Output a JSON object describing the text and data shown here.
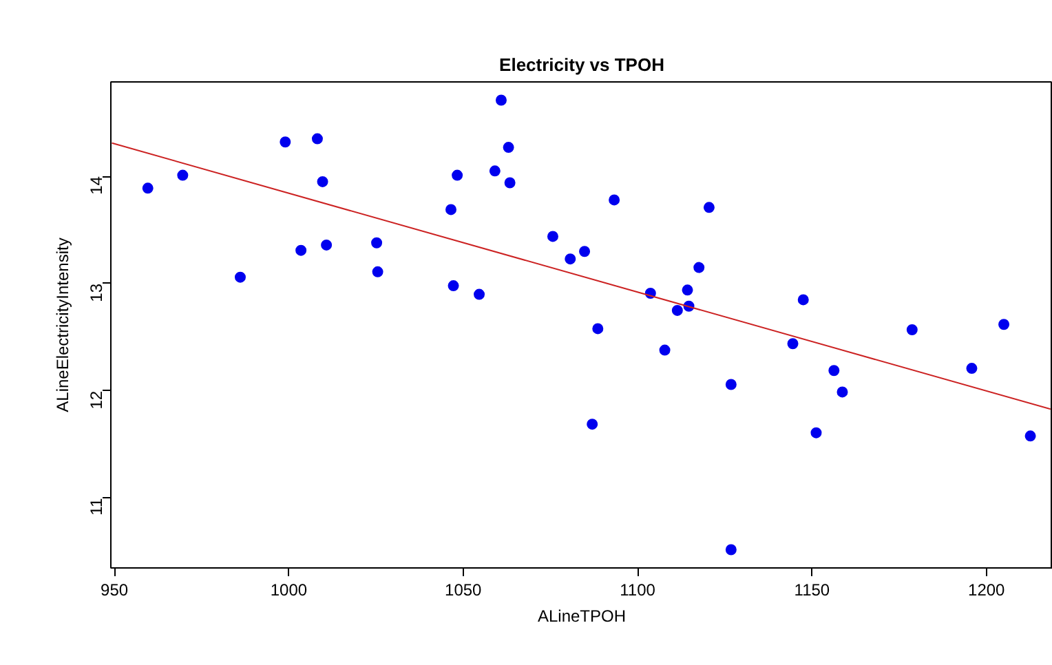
{
  "chart_data": {
    "type": "scatter",
    "title": "Electricity vs TPOH",
    "xlabel": "ALineTPOH",
    "ylabel": "ALineElectricityIntensity",
    "xlim": [
      949,
      1219
    ],
    "ylim": [
      10.35,
      14.88
    ],
    "xticks": [
      950,
      1000,
      1050,
      1100,
      1150,
      1200
    ],
    "yticks": [
      11,
      12,
      13,
      14
    ],
    "grid": false,
    "series": [
      {
        "marker": "circle",
        "color": "#0000ee",
        "x": [
          959.6,
          969.6,
          986.1,
          999.0,
          1003.5,
          1008.2,
          1009.7,
          1010.8,
          1025.2,
          1025.5,
          1046.5,
          1047.2,
          1048.3,
          1054.6,
          1059.1,
          1060.9,
          1063.0,
          1063.4,
          1075.7,
          1080.7,
          1084.8,
          1088.6,
          1087.0,
          1093.3,
          1103.7,
          1107.8,
          1111.4,
          1114.3,
          1114.7,
          1117.6,
          1120.5,
          1126.8,
          1126.8,
          1144.5,
          1147.5,
          1151.2,
          1156.3,
          1158.7,
          1178.7,
          1195.8,
          1205.0,
          1212.6
        ],
        "values": [
          13.89,
          14.01,
          13.06,
          14.32,
          13.31,
          14.35,
          13.95,
          13.36,
          13.38,
          13.11,
          13.69,
          12.98,
          14.01,
          12.9,
          14.05,
          14.71,
          14.27,
          13.94,
          13.44,
          13.23,
          13.3,
          12.58,
          11.69,
          13.78,
          12.91,
          12.38,
          12.75,
          12.94,
          12.79,
          13.15,
          13.71,
          12.06,
          10.52,
          12.44,
          12.85,
          11.61,
          12.19,
          11.99,
          12.57,
          12.21,
          12.62,
          11.58
        ]
      },
      {
        "type": "line",
        "color": "#cc2222",
        "x": [
          949.3,
          1218.4
        ],
        "values": [
          14.31,
          11.83
        ]
      }
    ]
  }
}
